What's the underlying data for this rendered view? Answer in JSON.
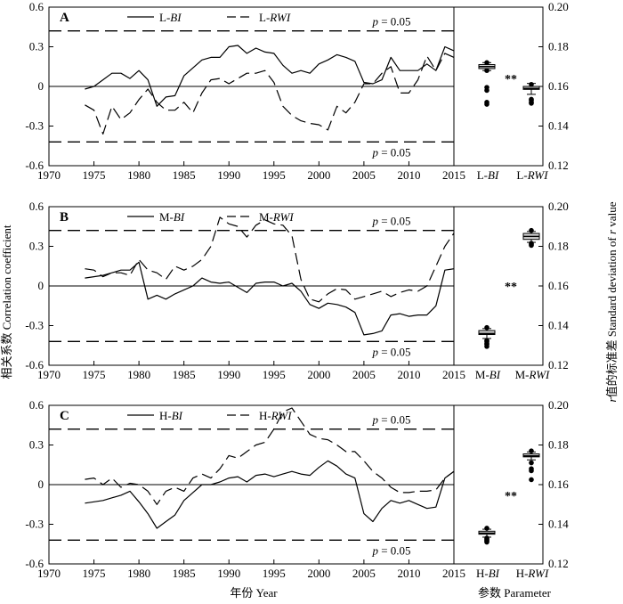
{
  "figure": {
    "xlabel": "年份 Year",
    "box_xlabel": "参数 Parameter",
    "ylabel_left": "相关系数 Correlation coefficient",
    "ylabel_right_prefix": "r",
    "ylabel_right_rest": "值的标准差 Standard deviation of ",
    "ylabel_right_suffix": "r",
    "ylabel_right_end": " value"
  },
  "chart_data": [
    {
      "type": "line",
      "panel": "A",
      "xlim": [
        1970,
        2015
      ],
      "ylim": [
        -0.6,
        0.6
      ],
      "xticks": [
        "1970",
        "1975",
        "1980",
        "1985",
        "1990",
        "1995",
        "2000",
        "2005",
        "2010",
        "2015"
      ],
      "yticks": [
        "-0.6",
        "-0.3",
        "0",
        "0.3",
        "0.6"
      ],
      "threshold_label": "p = 0.05",
      "threshold": 0.42,
      "legend": "top-center",
      "series": [
        {
          "name": "L-BI",
          "prefix": "L-",
          "suffix": "BI",
          "style": "solid",
          "x": [
            1974,
            1975,
            1976,
            1977,
            1978,
            1979,
            1980,
            1981,
            1982,
            1983,
            1984,
            1985,
            1986,
            1987,
            1988,
            1989,
            1990,
            1991,
            1992,
            1993,
            1994,
            1995,
            1996,
            1997,
            1998,
            1999,
            2000,
            2001,
            2002,
            2003,
            2004,
            2005,
            2006,
            2007,
            2008,
            2009,
            2010,
            2011,
            2012,
            2013,
            2014,
            2015
          ],
          "y": [
            -0.02,
            0.0,
            0.05,
            0.1,
            0.1,
            0.06,
            0.12,
            0.05,
            -0.15,
            -0.08,
            -0.07,
            0.08,
            0.14,
            0.2,
            0.22,
            0.22,
            0.3,
            0.31,
            0.25,
            0.29,
            0.26,
            0.25,
            0.16,
            0.1,
            0.12,
            0.1,
            0.17,
            0.2,
            0.24,
            0.22,
            0.19,
            0.03,
            0.02,
            0.05,
            0.22,
            0.12,
            0.12,
            0.12,
            0.17,
            0.12,
            0.3,
            0.27
          ]
        },
        {
          "name": "L-RWI",
          "prefix": "L-",
          "suffix": "RWI",
          "style": "dashed",
          "x": [
            1974,
            1975,
            1976,
            1977,
            1978,
            1979,
            1980,
            1981,
            1982,
            1983,
            1984,
            1985,
            1986,
            1987,
            1988,
            1989,
            1990,
            1991,
            1992,
            1993,
            1994,
            1995,
            1996,
            1997,
            1998,
            1999,
            2000,
            2001,
            2002,
            2003,
            2004,
            2005,
            2006,
            2007,
            2008,
            2009,
            2010,
            2011,
            2012,
            2013,
            2014,
            2015
          ],
          "y": [
            -0.14,
            -0.18,
            -0.36,
            -0.15,
            -0.25,
            -0.2,
            -0.1,
            -0.02,
            -0.12,
            -0.18,
            -0.18,
            -0.12,
            -0.2,
            -0.05,
            0.05,
            0.06,
            0.02,
            0.06,
            0.1,
            0.1,
            0.12,
            0.03,
            -0.15,
            -0.22,
            -0.26,
            -0.28,
            -0.29,
            -0.33,
            -0.15,
            -0.2,
            -0.12,
            0.02,
            0.02,
            0.1,
            0.15,
            -0.05,
            -0.05,
            0.05,
            0.23,
            0.12,
            0.25,
            0.22
          ]
        }
      ],
      "box": {
        "ylim": [
          0.12,
          0.2
        ],
        "yticks": [
          "0.12",
          "0.14",
          "0.16",
          "0.18",
          "0.20"
        ],
        "significance": "**",
        "groups": [
          {
            "label_prefix": "L-",
            "label_suffix": "BI",
            "q1": 0.169,
            "median": 0.17,
            "q3": 0.171,
            "whisker_low": 0.168,
            "whisker_high": 0.172,
            "outliers": [
              0.168,
              0.172,
              0.158,
              0.1595,
              0.152,
              0.151
            ]
          },
          {
            "label_prefix": "L-",
            "label_suffix": "RWI",
            "q1": 0.1585,
            "median": 0.159,
            "q3": 0.16,
            "whisker_low": 0.156,
            "whisker_high": 0.1615,
            "outliers": [
              0.1535,
              0.153,
              0.152,
              0.1515,
              0.161
            ]
          }
        ]
      }
    },
    {
      "type": "line",
      "panel": "B",
      "xlim": [
        1970,
        2015
      ],
      "ylim": [
        -0.6,
        0.6
      ],
      "xticks": [
        "1970",
        "1975",
        "1980",
        "1985",
        "1990",
        "1995",
        "2000",
        "2005",
        "2010",
        "2015"
      ],
      "yticks": [
        "-0.6",
        "-0.3",
        "0",
        "0.3",
        "0.6"
      ],
      "threshold_label": "p = 0.05",
      "threshold": 0.42,
      "legend": "top-center",
      "series": [
        {
          "name": "M-BI",
          "prefix": "M-",
          "suffix": "BI",
          "style": "solid",
          "x": [
            1974,
            1975,
            1976,
            1977,
            1978,
            1979,
            1980,
            1981,
            1982,
            1983,
            1984,
            1985,
            1986,
            1987,
            1988,
            1989,
            1990,
            1991,
            1992,
            1993,
            1994,
            1995,
            1996,
            1997,
            1998,
            1999,
            2000,
            2001,
            2002,
            2003,
            2004,
            2005,
            2006,
            2007,
            2008,
            2009,
            2010,
            2011,
            2012,
            2013,
            2014,
            2015
          ],
          "y": [
            0.06,
            0.07,
            0.08,
            0.1,
            0.12,
            0.12,
            0.18,
            -0.1,
            -0.07,
            -0.1,
            -0.06,
            -0.03,
            0.0,
            0.06,
            0.03,
            0.02,
            0.03,
            -0.01,
            -0.05,
            0.02,
            0.03,
            0.03,
            0.0,
            0.02,
            -0.04,
            -0.14,
            -0.17,
            -0.13,
            -0.14,
            -0.16,
            -0.2,
            -0.37,
            -0.36,
            -0.34,
            -0.22,
            -0.21,
            -0.23,
            -0.22,
            -0.22,
            -0.15,
            0.12,
            0.13
          ]
        },
        {
          "name": "M-RWI",
          "prefix": "M-",
          "suffix": "RWI",
          "style": "dashed",
          "x": [
            1974,
            1975,
            1976,
            1977,
            1978,
            1979,
            1980,
            1981,
            1982,
            1983,
            1984,
            1985,
            1986,
            1987,
            1988,
            1989,
            1990,
            1991,
            1992,
            1993,
            1994,
            1995,
            1996,
            1997,
            1998,
            1999,
            2000,
            2001,
            2002,
            2003,
            2004,
            2005,
            2006,
            2007,
            2008,
            2009,
            2010,
            2011,
            2012,
            2013,
            2014,
            2015
          ],
          "y": [
            0.13,
            0.12,
            0.07,
            0.1,
            0.1,
            0.08,
            0.2,
            0.12,
            0.1,
            0.05,
            0.15,
            0.12,
            0.15,
            0.2,
            0.3,
            0.52,
            0.47,
            0.45,
            0.37,
            0.46,
            0.5,
            0.47,
            0.46,
            0.38,
            0.05,
            -0.1,
            -0.12,
            -0.06,
            -0.02,
            -0.03,
            -0.1,
            -0.08,
            -0.06,
            -0.04,
            -0.08,
            -0.05,
            -0.03,
            -0.04,
            0.0,
            0.15,
            0.3,
            0.4
          ]
        }
      ],
      "box": {
        "ylim": [
          0.12,
          0.2
        ],
        "yticks": [
          "0.12",
          "0.14",
          "0.16",
          "0.18",
          "0.20"
        ],
        "significance": "**",
        "groups": [
          {
            "label_prefix": "M-",
            "label_suffix": "BI",
            "q1": 0.1355,
            "median": 0.136,
            "q3": 0.1375,
            "whisker_low": 0.1335,
            "whisker_high": 0.1385,
            "outliers": [
              0.1325,
              0.132,
              0.131,
              0.1305,
              0.1295,
              0.139
            ]
          },
          {
            "label_prefix": "M-",
            "label_suffix": "RWI",
            "q1": 0.1835,
            "median": 0.185,
            "q3": 0.1865,
            "whisker_low": 0.182,
            "whisker_high": 0.1875,
            "outliers": [
              0.1805,
              0.181,
              0.1815,
              0.188
            ]
          }
        ]
      }
    },
    {
      "type": "line",
      "panel": "C",
      "xlim": [
        1970,
        2015
      ],
      "ylim": [
        -0.6,
        0.6
      ],
      "xticks": [
        "1970",
        "1975",
        "1980",
        "1985",
        "1990",
        "1995",
        "2000",
        "2005",
        "2010",
        "2015"
      ],
      "yticks": [
        "-0.6",
        "-0.3",
        "0",
        "0.3",
        "0.6"
      ],
      "threshold_label": "p = 0.05",
      "threshold": 0.42,
      "legend": "top-center",
      "series": [
        {
          "name": "H-BI",
          "prefix": "H-",
          "suffix": "BI",
          "style": "solid",
          "x": [
            1974,
            1975,
            1976,
            1977,
            1978,
            1979,
            1980,
            1981,
            1982,
            1983,
            1984,
            1985,
            1986,
            1987,
            1988,
            1989,
            1990,
            1991,
            1992,
            1993,
            1994,
            1995,
            1996,
            1997,
            1998,
            1999,
            2000,
            2001,
            2002,
            2003,
            2004,
            2005,
            2006,
            2007,
            2008,
            2009,
            2010,
            2011,
            2012,
            2013,
            2014,
            2015
          ],
          "y": [
            -0.14,
            -0.13,
            -0.12,
            -0.1,
            -0.08,
            -0.05,
            -0.13,
            -0.22,
            -0.33,
            -0.28,
            -0.23,
            -0.12,
            -0.06,
            0.0,
            0.0,
            0.02,
            0.05,
            0.06,
            0.02,
            0.07,
            0.08,
            0.06,
            0.08,
            0.1,
            0.08,
            0.07,
            0.13,
            0.18,
            0.14,
            0.08,
            0.05,
            -0.22,
            -0.28,
            -0.18,
            -0.12,
            -0.14,
            -0.12,
            -0.15,
            -0.18,
            -0.17,
            0.05,
            0.1
          ]
        },
        {
          "name": "H-RWI",
          "prefix": "H-",
          "suffix": "RWI",
          "style": "dashed",
          "x": [
            1974,
            1975,
            1976,
            1977,
            1978,
            1979,
            1980,
            1981,
            1982,
            1983,
            1984,
            1985,
            1986,
            1987,
            1988,
            1989,
            1990,
            1991,
            1992,
            1993,
            1994,
            1995,
            1996,
            1997,
            1998,
            1999,
            2000,
            2001,
            2002,
            2003,
            2004,
            2005,
            2006,
            2007,
            2008,
            2009,
            2010,
            2011,
            2012,
            2013,
            2014,
            2015
          ],
          "y": [
            0.04,
            0.05,
            0.0,
            0.05,
            -0.02,
            0.01,
            0.0,
            -0.05,
            -0.15,
            -0.05,
            -0.02,
            -0.05,
            0.05,
            0.08,
            0.05,
            0.12,
            0.22,
            0.2,
            0.25,
            0.3,
            0.32,
            0.42,
            0.55,
            0.58,
            0.48,
            0.38,
            0.35,
            0.34,
            0.3,
            0.25,
            0.25,
            0.18,
            0.1,
            0.05,
            -0.02,
            -0.06,
            -0.06,
            -0.05,
            -0.05,
            -0.04,
            0.05,
            0.1
          ]
        }
      ],
      "box": {
        "ylim": [
          0.12,
          0.2
        ],
        "yticks": [
          "0.12",
          "0.14",
          "0.16",
          "0.18",
          "0.20"
        ],
        "significance": "**",
        "groups": [
          {
            "label_prefix": "H-",
            "label_suffix": "BI",
            "q1": 0.135,
            "median": 0.1355,
            "q3": 0.1365,
            "whisker_low": 0.1335,
            "whisker_high": 0.1375,
            "outliers": [
              0.133,
              0.1325,
              0.132,
              0.1315,
              0.131,
              0.138
            ]
          },
          {
            "label_prefix": "H-",
            "label_suffix": "RWI",
            "q1": 0.174,
            "median": 0.1745,
            "q3": 0.1755,
            "whisker_low": 0.1725,
            "whisker_high": 0.1765,
            "outliers": [
              0.171,
              0.168,
              0.167,
              0.1625,
              0.177
            ]
          }
        ]
      }
    }
  ]
}
